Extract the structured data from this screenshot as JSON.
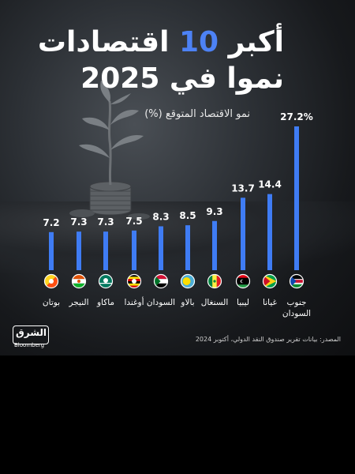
{
  "title": {
    "line1_word1": "أكبر",
    "line1_number": "10",
    "line1_word2": "اقتصادات",
    "line2": "نموا في 2025"
  },
  "source": "المصدر: بيانات تقرير صندوق النقد الدولي، أكتوبر 2024",
  "logo": {
    "arabic": "الشرق",
    "english": "Bloomberg"
  },
  "colors": {
    "accent": "#4d82f5",
    "background": "#1b1d20",
    "text": "#ffffff"
  },
  "chart_data": {
    "type": "bar",
    "title": "أكبر 10 اقتصادات نموا في 2025",
    "ylabel": "نمو الاقتصاد المتوقع (%)",
    "categories": [
      "جنوب السودان",
      "غيانا",
      "ليبيا",
      "السنغال",
      "بالاو",
      "السودان",
      "أوغندا",
      "ماكاو",
      "النيجر",
      "بوتان"
    ],
    "values": [
      27.2,
      14.4,
      13.7,
      9.3,
      8.5,
      8.3,
      7.5,
      7.3,
      7.3,
      7.2
    ],
    "value_labels": [
      "27.2%",
      "14.4",
      "13.7",
      "9.3",
      "8.5",
      "8.3",
      "7.5",
      "7.3",
      "7.3",
      "7.2"
    ],
    "flags": [
      "south-sudan-flag",
      "guyana-flag",
      "libya-flag",
      "senegal-flag",
      "palau-flag",
      "sudan-flag",
      "uganda-flag",
      "macau-flag",
      "niger-flag",
      "bhutan-flag"
    ],
    "ylim": [
      0,
      27.2
    ],
    "grid": false,
    "legend": "none",
    "bar_color": "#3f7cf4"
  }
}
